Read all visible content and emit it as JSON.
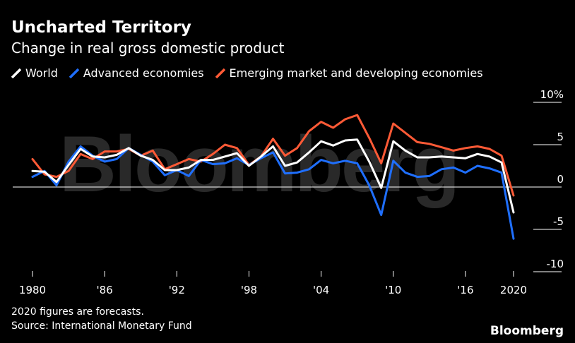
{
  "title": "Uncharted Territory",
  "subtitle": "Change in real gross domestic product",
  "footnote": "2020 figures are forecasts.",
  "source": "Source: International Monetary Fund",
  "logo": "Bloomberg",
  "watermark": "Bloomberg",
  "colors": {
    "background": "#000000",
    "world": "#ffffff",
    "advanced": "#1f6fff",
    "emerging": "#ff5a36",
    "grid": "#ffffff"
  },
  "chart_data": {
    "type": "line",
    "title": "Uncharted Territory",
    "subtitle": "Change in real gross domestic product",
    "xlabel": "",
    "ylabel": "",
    "x": [
      1980,
      1981,
      1982,
      1983,
      1984,
      1985,
      1986,
      1987,
      1988,
      1989,
      1990,
      1991,
      1992,
      1993,
      1994,
      1995,
      1996,
      1997,
      1998,
      1999,
      2000,
      2001,
      2002,
      2003,
      2004,
      2005,
      2006,
      2007,
      2008,
      2009,
      2010,
      2011,
      2012,
      2013,
      2014,
      2015,
      2016,
      2017,
      2018,
      2019,
      2020
    ],
    "xticks": [
      1980,
      1986,
      1992,
      1998,
      2004,
      2010,
      2016,
      2020
    ],
    "xtick_labels": [
      "1980",
      "'86",
      "'92",
      "'98",
      "'04",
      "'10",
      "'16",
      "2020"
    ],
    "ylim": [
      -11,
      11
    ],
    "yticks": [
      10,
      5,
      0,
      -5,
      -10
    ],
    "ytick_labels": [
      "10%",
      "5",
      "0",
      "-5",
      "-10"
    ],
    "grid": true,
    "legend_position": "top-left",
    "series": [
      {
        "name": "World",
        "color": "#ffffff",
        "values": [
          1.9,
          1.8,
          0.6,
          2.6,
          4.5,
          3.6,
          3.5,
          3.8,
          4.6,
          3.7,
          3.2,
          2.0,
          2.0,
          2.3,
          3.2,
          3.2,
          3.6,
          4.0,
          2.5,
          3.6,
          4.8,
          2.5,
          2.9,
          4.1,
          5.4,
          4.9,
          5.5,
          5.6,
          3.0,
          -0.1,
          5.4,
          4.3,
          3.5,
          3.5,
          3.6,
          3.5,
          3.4,
          3.9,
          3.6,
          2.9,
          -3.0
        ]
      },
      {
        "name": "Advanced economies",
        "color": "#1f6fff",
        "values": [
          1.2,
          1.9,
          0.2,
          3.0,
          4.8,
          3.7,
          3.0,
          3.3,
          4.6,
          3.8,
          3.0,
          1.4,
          2.0,
          1.3,
          3.2,
          2.7,
          2.8,
          3.4,
          2.6,
          3.4,
          4.1,
          1.6,
          1.7,
          2.1,
          3.2,
          2.8,
          3.1,
          2.8,
          0.2,
          -3.3,
          3.1,
          1.7,
          1.2,
          1.3,
          2.1,
          2.3,
          1.7,
          2.5,
          2.2,
          1.7,
          -6.1
        ]
      },
      {
        "name": "Emerging market and developing economies",
        "color": "#ff5a36",
        "values": [
          3.3,
          1.5,
          1.2,
          1.9,
          3.9,
          3.3,
          4.2,
          4.2,
          4.5,
          3.7,
          4.3,
          2.1,
          2.7,
          3.3,
          3.0,
          3.9,
          5.0,
          4.6,
          2.6,
          3.6,
          5.7,
          3.7,
          4.6,
          6.6,
          7.7,
          7.0,
          8.0,
          8.5,
          5.8,
          2.8,
          7.5,
          6.4,
          5.3,
          5.1,
          4.7,
          4.3,
          4.6,
          4.8,
          4.5,
          3.7,
          -1.0
        ]
      }
    ]
  }
}
